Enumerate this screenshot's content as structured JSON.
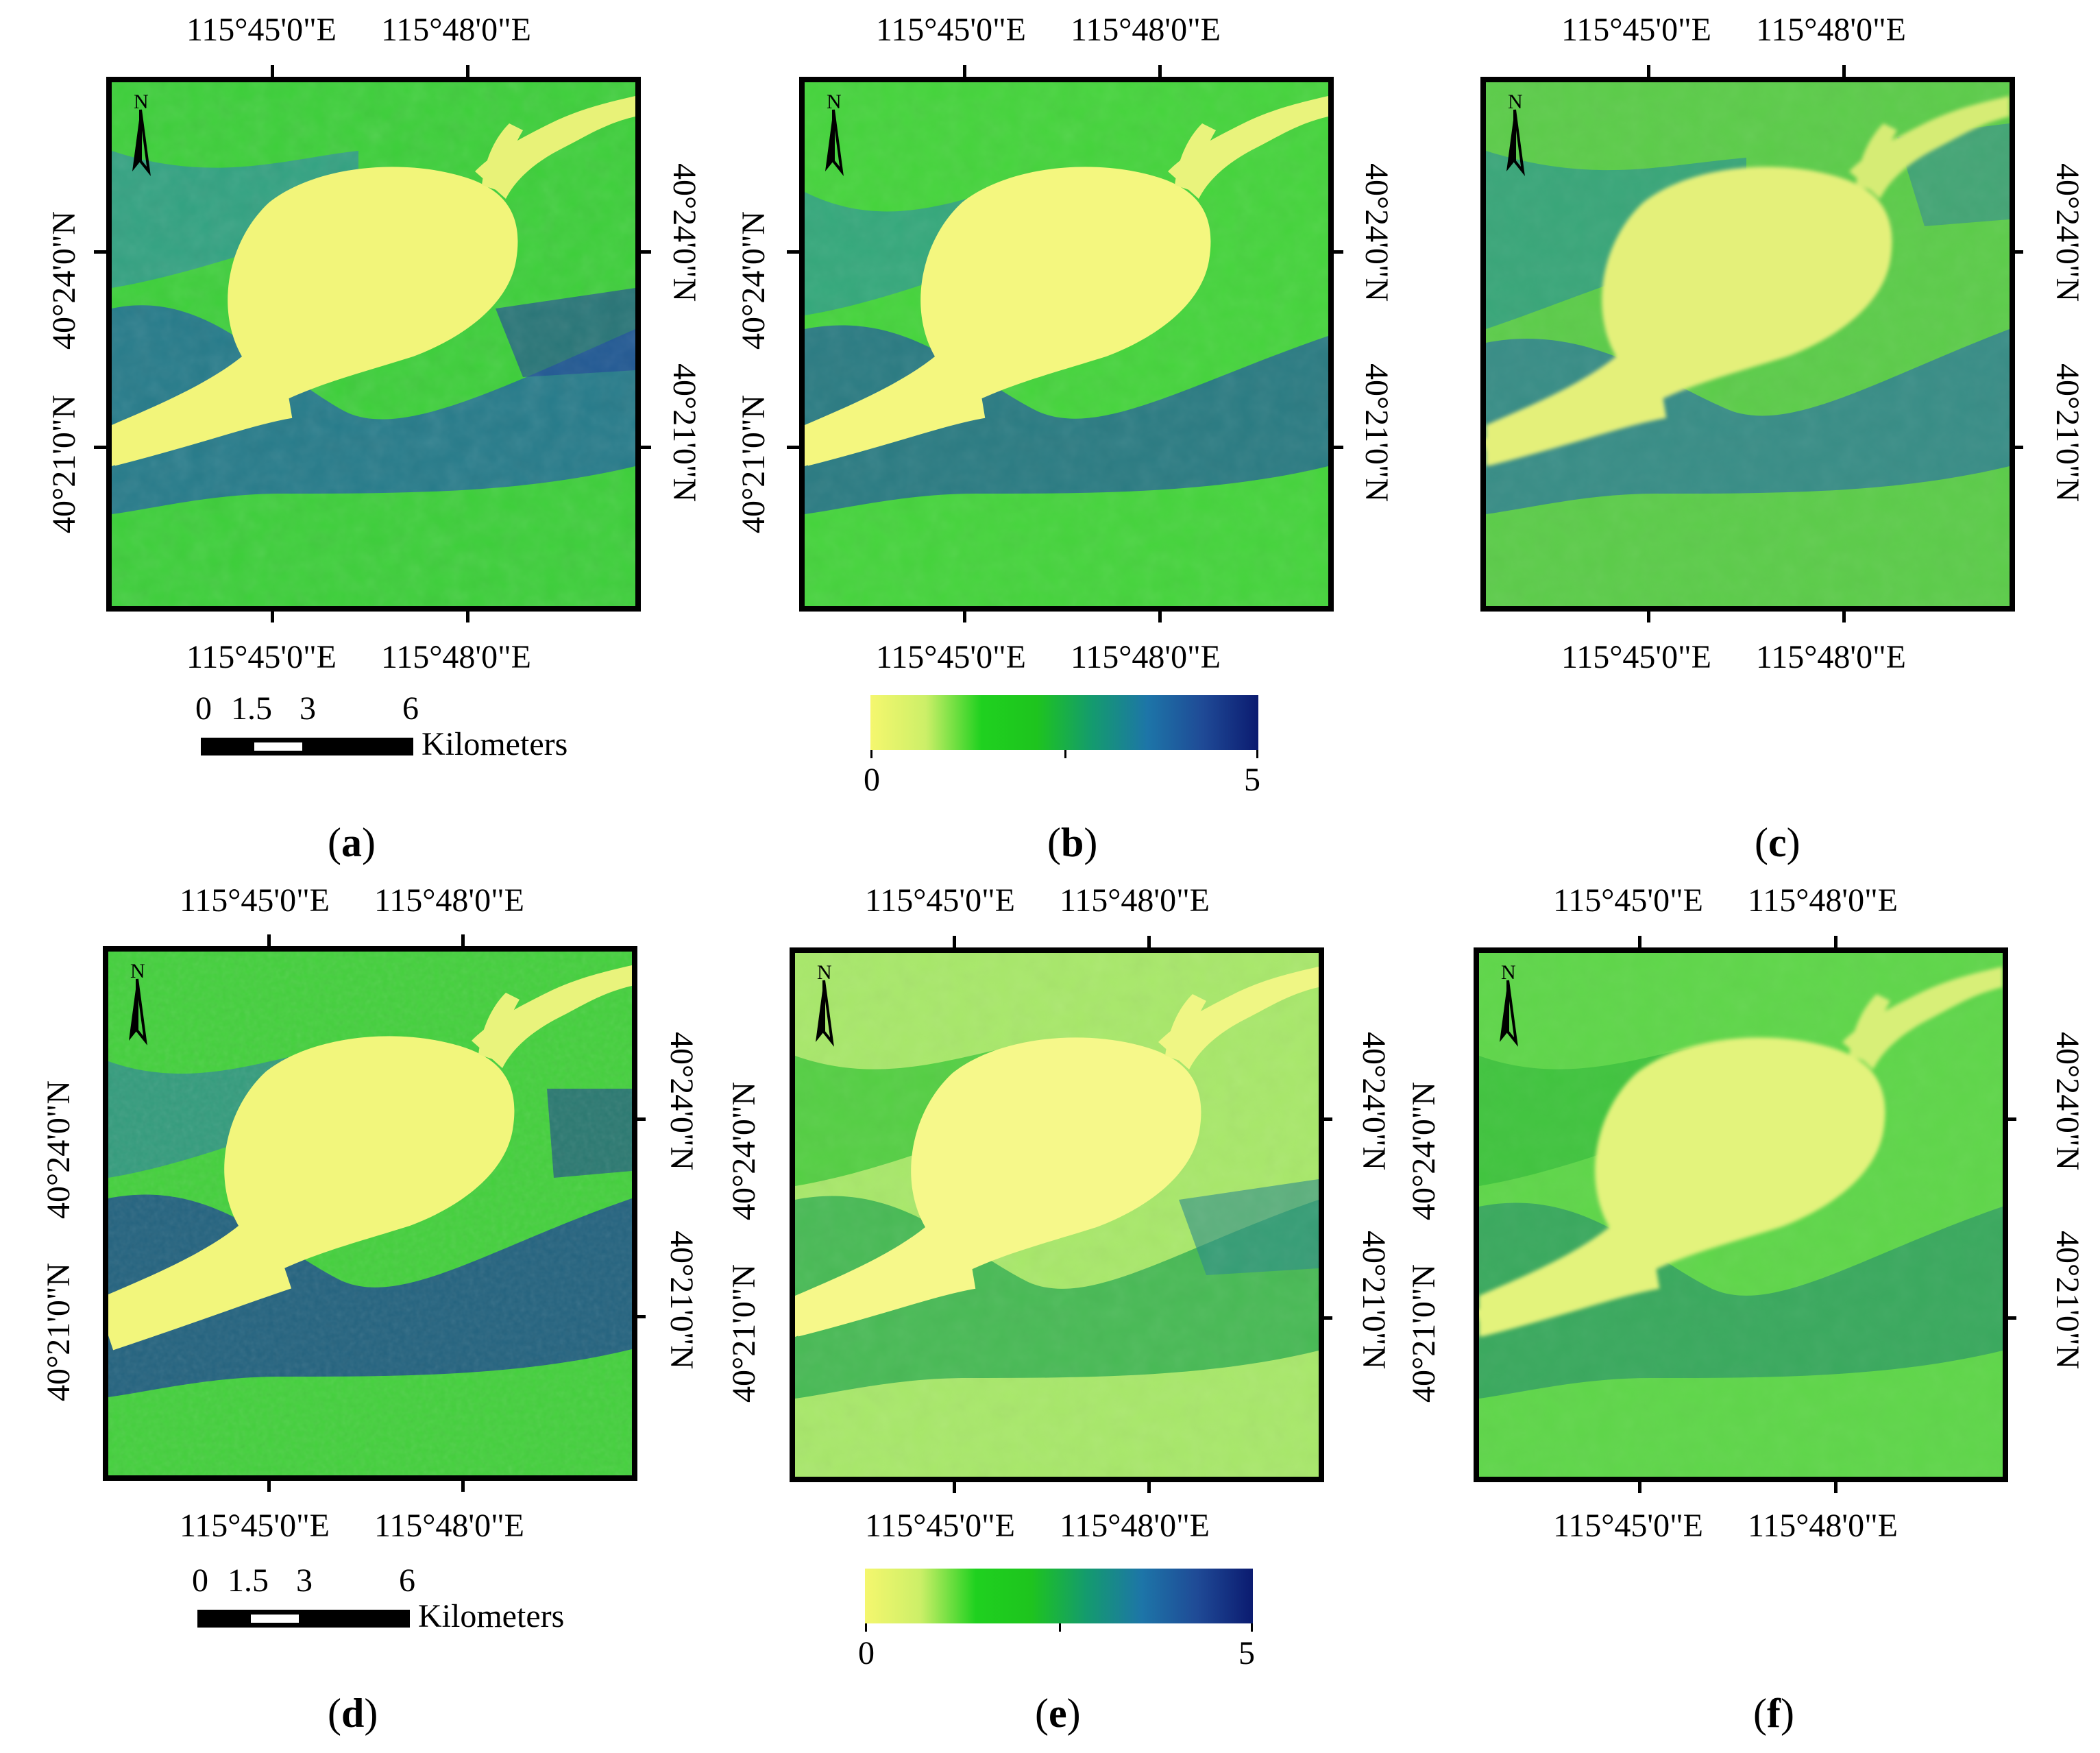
{
  "shared": {
    "lon_left": "115°45'0\"E",
    "lon_right": "115°48'0\"E",
    "lat_top": "40°24'0\"N",
    "lat_bottom": "40°21'0\"N",
    "north_label": "N"
  },
  "panels": [
    {
      "id": "a",
      "caption_open": "(",
      "caption_letter": "a",
      "caption_close": ")"
    },
    {
      "id": "b",
      "caption_open": "(",
      "caption_letter": "b",
      "caption_close": ")"
    },
    {
      "id": "c",
      "caption_open": "(",
      "caption_letter": "c",
      "caption_close": ")"
    },
    {
      "id": "d",
      "caption_open": "(",
      "caption_letter": "d",
      "caption_close": ")"
    },
    {
      "id": "e",
      "caption_open": "(",
      "caption_letter": "e",
      "caption_close": ")"
    },
    {
      "id": "f",
      "caption_open": "(",
      "caption_letter": "f",
      "caption_close": ")"
    }
  ],
  "scale_bar": {
    "ticks": [
      "0",
      "1.5",
      "3",
      "6"
    ],
    "unit": "Kilometers"
  },
  "legend": {
    "min_label": "0",
    "max_label": "5",
    "colors": [
      "#f5f76e",
      "#ccef68",
      "#1fd11f",
      "#1ec41e",
      "#149b6e",
      "#1d75a8",
      "#1f4a96",
      "#0b1b70"
    ]
  }
}
